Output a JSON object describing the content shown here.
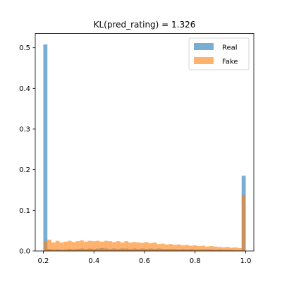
{
  "chart_data": {
    "type": "histogram",
    "title": "KL(pred_rating) = 1.326",
    "xlabel": "",
    "ylabel": "",
    "xlim": [
      0.168,
      1.032
    ],
    "ylim": [
      0,
      0.535
    ],
    "bin_start": 0.2,
    "bin_width": 0.016,
    "xticks": [
      0.2,
      0.4,
      0.6,
      0.8,
      1.0
    ],
    "xtick_labels": [
      "0.2",
      "0.4",
      "0.6",
      "0.8",
      "1.0"
    ],
    "yticks": [
      0.0,
      0.1,
      0.2,
      0.3,
      0.4,
      0.5
    ],
    "ytick_labels": [
      "0.0",
      "0.1",
      "0.2",
      "0.3",
      "0.4",
      "0.5"
    ],
    "grid": false,
    "legend_position": "top-right",
    "series": [
      {
        "name": "Real",
        "color": "#1f77b4",
        "opacity": 0.6,
        "values": [
          0.508,
          0.005,
          0.003,
          0.004,
          0.003,
          0.004,
          0.005,
          0.004,
          0.005,
          0.006,
          0.005,
          0.006,
          0.005,
          0.006,
          0.007,
          0.006,
          0.005,
          0.006,
          0.005,
          0.006,
          0.006,
          0.005,
          0.006,
          0.005,
          0.006,
          0.005,
          0.006,
          0.005,
          0.006,
          0.005,
          0.005,
          0.005,
          0.005,
          0.004,
          0.005,
          0.004,
          0.005,
          0.004,
          0.004,
          0.004,
          0.004,
          0.004,
          0.003,
          0.004,
          0.003,
          0.003,
          0.003,
          0.002,
          0.002,
          0.185
        ]
      },
      {
        "name": "Fake",
        "color": "#ff7f0e",
        "opacity": 0.6,
        "values": [
          0.024,
          0.028,
          0.021,
          0.025,
          0.021,
          0.023,
          0.025,
          0.022,
          0.024,
          0.026,
          0.023,
          0.025,
          0.024,
          0.025,
          0.023,
          0.025,
          0.024,
          0.022,
          0.024,
          0.021,
          0.024,
          0.021,
          0.022,
          0.021,
          0.02,
          0.022,
          0.019,
          0.021,
          0.017,
          0.018,
          0.016,
          0.017,
          0.015,
          0.016,
          0.014,
          0.015,
          0.013,
          0.014,
          0.012,
          0.013,
          0.011,
          0.012,
          0.011,
          0.01,
          0.009,
          0.01,
          0.008,
          0.009,
          0.007,
          0.137
        ]
      }
    ]
  }
}
